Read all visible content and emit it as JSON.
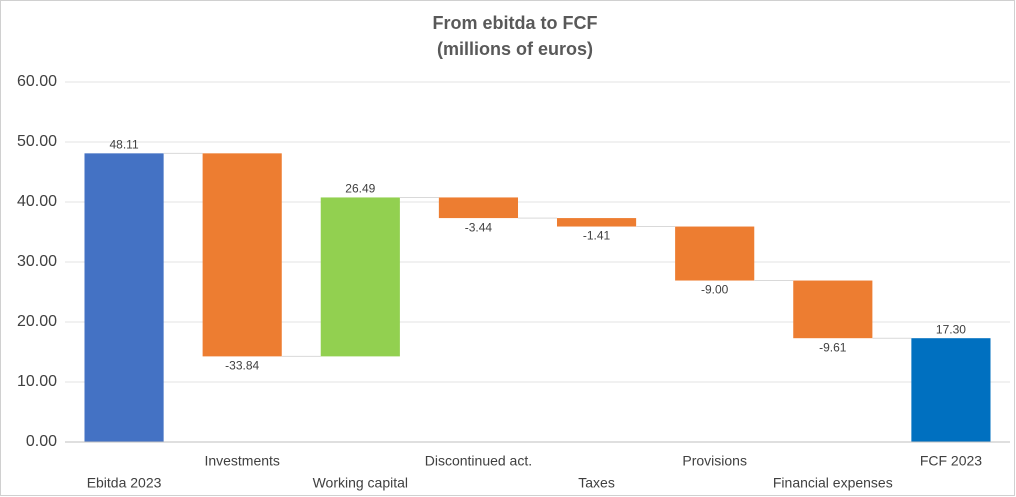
{
  "chart_data": {
    "type": "waterfall",
    "title": "From ebitda to FCF",
    "subtitle": "(millions of euros)",
    "categories": [
      "Ebitda 2023",
      "Investments",
      "Working capital",
      "Discontinued act.",
      "Taxes",
      "Provisions",
      "Financial expenses",
      "FCF 2023"
    ],
    "values": [
      48.11,
      -33.84,
      26.49,
      -3.44,
      -1.41,
      -9.0,
      -9.61,
      17.3
    ],
    "value_labels": [
      "48.11",
      "-33.84",
      "26.49",
      "-3.44",
      "-1.41",
      "-9.00",
      "-9.61",
      "17.30"
    ],
    "measures": [
      "absolute",
      "relative",
      "relative",
      "relative",
      "relative",
      "relative",
      "relative",
      "total"
    ],
    "colors": [
      "#4472c4",
      "#ed7d31",
      "#92d050",
      "#ed7d31",
      "#ed7d31",
      "#ed7d31",
      "#ed7d31",
      "#0070c0"
    ],
    "ylim": [
      0,
      60
    ],
    "yticks": [
      {
        "value": 0,
        "label": "0.00"
      },
      {
        "value": 10,
        "label": "10.00"
      },
      {
        "value": 20,
        "label": "20.00"
      },
      {
        "value": 30,
        "label": "30.00"
      },
      {
        "value": 40,
        "label": "40.00"
      },
      {
        "value": 50,
        "label": "50.00"
      },
      {
        "value": 60,
        "label": "60.00"
      }
    ],
    "grid": true
  }
}
